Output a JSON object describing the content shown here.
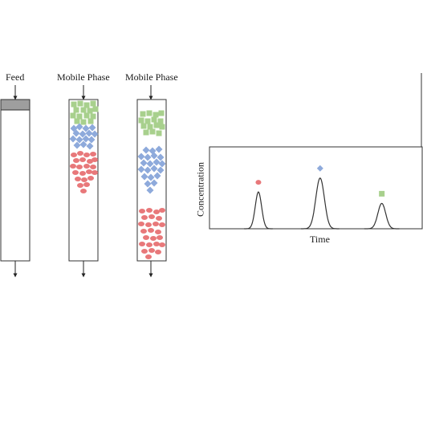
{
  "labels": {
    "feed": "Feed",
    "mobile_phase_1": "Mobile Phase",
    "mobile_phase_2": "Mobile Phase"
  },
  "colors": {
    "green": "#a8d08d",
    "blue": "#8eaadb",
    "red": "#e8787a",
    "feed_band": "#9e9e9e",
    "stroke": "#333333"
  },
  "chart_data": {
    "type": "line",
    "xlabel": "Time",
    "ylabel": "Concentration",
    "series": [
      {
        "marker": "circle",
        "color": "#e8787a",
        "peak_time": 0.23,
        "peak_height": 0.45,
        "width": 0.045
      },
      {
        "marker": "diamond",
        "color": "#8eaadb",
        "peak_time": 0.52,
        "peak_height": 0.62,
        "width": 0.06
      },
      {
        "marker": "square",
        "color": "#a8d08d",
        "peak_time": 0.81,
        "peak_height": 0.31,
        "width": 0.055
      }
    ],
    "xlim": [
      0,
      1
    ],
    "ylim": [
      0,
      1
    ],
    "grid": false
  }
}
